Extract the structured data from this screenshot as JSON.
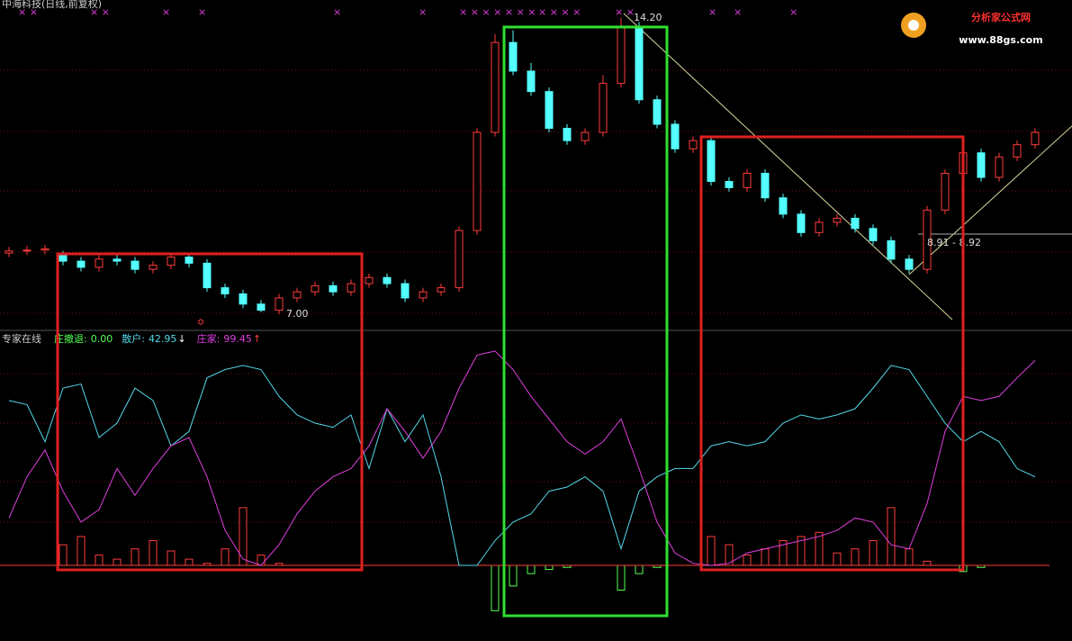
{
  "chart_data": [
    {
      "type": "candlestick",
      "title": "中海科技(日线,前复权)",
      "open": [
        8.45,
        8.5,
        8.52,
        8.4,
        8.25,
        8.1,
        8.3,
        8.25,
        8.05,
        8.15,
        8.35,
        8.2,
        7.6,
        7.45,
        7.2,
        7.05,
        7.35,
        7.5,
        7.65,
        7.5,
        7.7,
        7.85,
        7.7,
        7.35,
        7.5,
        7.6,
        9.0,
        11.4,
        13.6,
        12.9,
        12.4,
        11.5,
        11.2,
        11.4,
        12.6,
        14.0,
        12.2,
        11.6,
        11.0,
        11.2,
        10.2,
        10.05,
        10.4,
        9.8,
        9.4,
        8.95,
        9.2,
        9.3,
        9.05,
        8.75,
        8.3,
        8.05,
        9.5,
        10.4,
        10.9,
        10.3,
        10.8,
        11.1
      ],
      "high": [
        8.6,
        8.62,
        8.65,
        8.5,
        8.35,
        8.4,
        8.4,
        8.35,
        8.25,
        8.45,
        8.45,
        8.3,
        7.7,
        7.55,
        7.3,
        7.45,
        7.6,
        7.75,
        7.75,
        7.8,
        7.95,
        7.95,
        7.8,
        7.6,
        7.7,
        9.1,
        11.5,
        13.8,
        13.9,
        13.1,
        12.5,
        11.6,
        11.5,
        12.8,
        14.2,
        14.1,
        12.3,
        11.7,
        11.3,
        11.3,
        10.3,
        10.5,
        10.5,
        9.9,
        9.5,
        9.3,
        9.4,
        9.4,
        9.15,
        8.85,
        8.4,
        9.6,
        10.5,
        11.0,
        11.0,
        10.9,
        11.2,
        11.5
      ],
      "low": [
        8.35,
        8.4,
        8.42,
        8.15,
        8.0,
        8.0,
        8.15,
        7.95,
        7.95,
        8.05,
        8.1,
        7.5,
        7.35,
        7.1,
        7.0,
        6.95,
        7.25,
        7.4,
        7.4,
        7.4,
        7.6,
        7.6,
        7.25,
        7.25,
        7.4,
        7.5,
        8.9,
        11.3,
        12.8,
        12.3,
        11.4,
        11.1,
        11.1,
        11.3,
        12.5,
        12.1,
        11.5,
        10.9,
        10.9,
        10.1,
        9.95,
        9.95,
        9.7,
        9.3,
        8.85,
        8.85,
        9.1,
        8.95,
        8.65,
        8.2,
        7.95,
        7.95,
        9.4,
        10.3,
        10.2,
        10.2,
        10.7,
        11.0
      ],
      "close": [
        8.5,
        8.52,
        8.55,
        8.25,
        8.1,
        8.3,
        8.25,
        8.05,
        8.15,
        8.35,
        8.2,
        7.6,
        7.45,
        7.2,
        7.05,
        7.35,
        7.5,
        7.65,
        7.5,
        7.7,
        7.85,
        7.7,
        7.35,
        7.5,
        7.6,
        9.0,
        11.4,
        13.6,
        12.9,
        12.4,
        11.5,
        11.2,
        11.4,
        12.6,
        14.0,
        12.2,
        11.6,
        11.0,
        11.2,
        10.2,
        10.05,
        10.4,
        9.8,
        9.4,
        8.95,
        9.2,
        9.3,
        9.05,
        8.75,
        8.3,
        8.05,
        9.5,
        10.4,
        10.9,
        10.3,
        10.8,
        11.1,
        11.4
      ],
      "up_color": "#ff3c3c",
      "down_color": "#54ffff",
      "ylim": [
        6.6,
        14.64
      ],
      "annotations": [
        {
          "value": 14.2,
          "label": "14.20"
        },
        {
          "value": 7,
          "label": "7.00"
        },
        {
          "text": "8.91 - 8.92"
        }
      ]
    },
    {
      "type": "indicator",
      "title": "专家在线",
      "series": [
        {
          "name": "散户:",
          "color": "#54d8e8",
          "values": [
            80,
            78,
            60,
            86,
            88,
            62,
            69,
            86,
            80,
            58,
            65,
            91,
            95,
            97,
            95,
            82,
            73,
            69,
            67,
            73,
            47,
            76,
            60,
            73,
            43,
            0,
            0,
            12,
            21,
            25,
            36,
            38,
            43,
            36,
            8,
            36,
            43,
            47,
            47,
            58,
            60,
            58,
            60,
            69,
            73,
            71,
            73,
            76,
            86,
            97,
            95,
            82,
            69,
            60,
            65,
            60,
            47,
            42.95
          ],
          "arrow": "↓"
        },
        {
          "name": "庄家:",
          "color": "#e040e0",
          "values": [
            23,
            43,
            56,
            36,
            21,
            27,
            47,
            34,
            47,
            58,
            62,
            43,
            17,
            3,
            0,
            10,
            25,
            36,
            43,
            47,
            58,
            76,
            65,
            52,
            65,
            86,
            102,
            104,
            95,
            82,
            71,
            60,
            54,
            60,
            71,
            47,
            21,
            6,
            1,
            0,
            1,
            6,
            8,
            10,
            12,
            14,
            17,
            23,
            21,
            10,
            8,
            30,
            65,
            82,
            80,
            82,
            91,
            99.45
          ],
          "arrow": "↑"
        }
      ],
      "bars": {
        "name": "庄撤退:",
        "values": [
          0,
          0,
          0,
          10,
          14,
          5,
          3,
          8,
          12,
          7,
          3,
          1,
          8,
          28,
          5,
          1,
          0,
          0,
          0,
          0,
          0,
          0,
          0,
          0,
          0,
          0,
          0,
          -22,
          -10,
          -4,
          -2,
          -1,
          0,
          0,
          -12,
          -4,
          -1,
          0,
          0,
          14,
          10,
          5,
          8,
          12,
          14,
          16,
          6,
          8,
          12,
          28,
          8,
          2,
          0,
          -3,
          -1,
          0,
          0,
          0
        ],
        "readout": {
          "value": 0,
          "label": "0.00"
        },
        "up_color": "#ff3c3c",
        "down_color": "#54ff54"
      },
      "ylim": [
        -36.7,
        112.7
      ]
    }
  ],
  "logo": {
    "title": "分析家公式网",
    "url": "www.88gs.com"
  }
}
